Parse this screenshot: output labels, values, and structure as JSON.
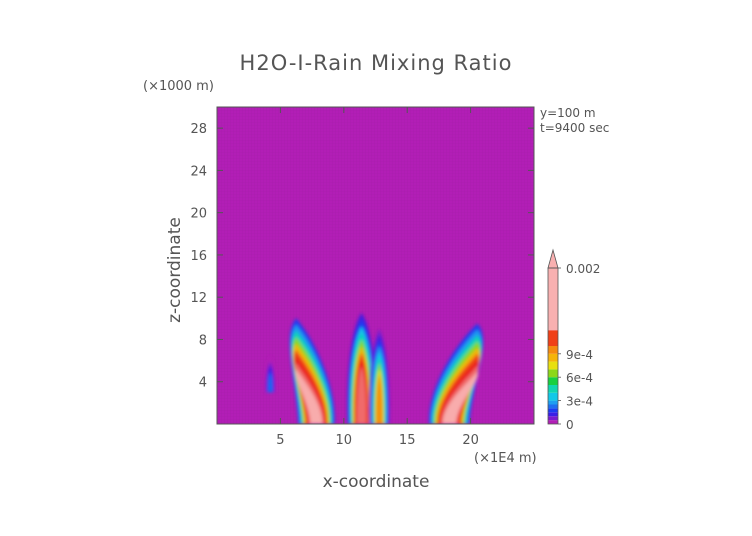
{
  "chart_data": {
    "type": "heatmap",
    "title": "H2O-I-Rain Mixing Ratio",
    "xlabel": "x-coordinate",
    "ylabel": "z-coordinate",
    "x_unit": "(×1E4 m)",
    "y_unit": "(×1000 m)",
    "annotations": [
      "y=100 m",
      "t=9400 sec"
    ],
    "xlim": [
      0,
      25
    ],
    "ylim": [
      0,
      30
    ],
    "x_ticks": [
      5,
      10,
      15,
      20
    ],
    "x_tick_labels": [
      "5",
      "10",
      "15",
      "20"
    ],
    "y_ticks": [
      4,
      8,
      12,
      16,
      20,
      24,
      28
    ],
    "y_tick_labels": [
      "4",
      "8",
      "12",
      "16",
      "20",
      "24",
      "28"
    ],
    "background_value": 0,
    "colorbar": {
      "min": 0,
      "max": 0.002,
      "extend": "max",
      "tick_values": [
        0,
        0.0003,
        0.0006,
        0.0009,
        0.002
      ],
      "tick_labels": [
        "0",
        "3e-4",
        "6e-4",
        "9e-4",
        "0.002"
      ],
      "levels": [
        {
          "value": 0,
          "color": "#b21eb6"
        },
        {
          "value": 5e-05,
          "color": "#7a1acf"
        },
        {
          "value": 0.0001,
          "color": "#3a1ee6"
        },
        {
          "value": 0.00015,
          "color": "#1b3cf2"
        },
        {
          "value": 0.0002,
          "color": "#1e6ef0"
        },
        {
          "value": 0.00025,
          "color": "#1e9ef0"
        },
        {
          "value": 0.0003,
          "color": "#12c8e8"
        },
        {
          "value": 0.0004,
          "color": "#10d6b0"
        },
        {
          "value": 0.0005,
          "color": "#18d040"
        },
        {
          "value": 0.0006,
          "color": "#8cd818"
        },
        {
          "value": 0.0007,
          "color": "#e8e010"
        },
        {
          "value": 0.0008,
          "color": "#f5b40a"
        },
        {
          "value": 0.0009,
          "color": "#f58a10"
        },
        {
          "value": 0.001,
          "color": "#f04018"
        },
        {
          "value": 0.0012,
          "color": "#e81c1c"
        },
        {
          "value": 0.0015,
          "color": "#f07070"
        },
        {
          "value": 0.002,
          "color": "#f8b0b0"
        }
      ]
    },
    "cells": [
      {
        "name": "cell-left",
        "x_center": 7.2,
        "z_top": 10,
        "z_base": 0,
        "tilt": -1.6,
        "half_width": 0.9,
        "peak": 0.002
      },
      {
        "name": "cell-left-outer",
        "x_center": 4.2,
        "z_top": 6.5,
        "z_base": 3,
        "tilt": 0,
        "half_width": 0.3,
        "peak": 0.0002
      },
      {
        "name": "cell-center",
        "x_center": 11.4,
        "z_top": 10.5,
        "z_base": 0,
        "tilt": 0,
        "half_width": 0.7,
        "peak": 0.0015
      },
      {
        "name": "cell-center-right",
        "x_center": 12.8,
        "z_top": 9,
        "z_base": 0,
        "tilt": 0,
        "half_width": 0.5,
        "peak": 0.0009
      },
      {
        "name": "cell-right",
        "x_center": 19.2,
        "z_top": 9.5,
        "z_base": 0,
        "tilt": 2.2,
        "half_width": 1.0,
        "peak": 0.002
      }
    ]
  }
}
